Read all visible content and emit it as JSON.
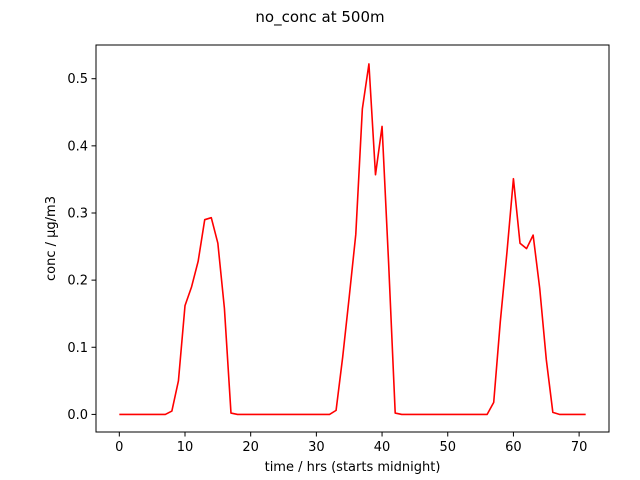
{
  "chart_data": {
    "type": "line",
    "title": "no_conc at 500m",
    "xlabel": "time / hrs (starts midnight)",
    "ylabel": "conc / µg/m3",
    "xlim": [
      -3.55,
      74.55
    ],
    "ylim": [
      -0.0262,
      0.5502
    ],
    "xticks": [
      0,
      10,
      20,
      30,
      40,
      50,
      60,
      70
    ],
    "yticks": [
      0.0,
      0.1,
      0.2,
      0.3,
      0.4,
      0.5
    ],
    "xtick_labels": [
      "0",
      "10",
      "20",
      "30",
      "40",
      "50",
      "60",
      "70"
    ],
    "ytick_labels": [
      "0.0",
      "0.1",
      "0.2",
      "0.3",
      "0.4",
      "0.5"
    ],
    "grid": false,
    "legend": "none",
    "series": [
      {
        "color": "#ff0000",
        "x": [
          0,
          1,
          2,
          3,
          4,
          5,
          6,
          7,
          8,
          9,
          10,
          11,
          12,
          13,
          14,
          15,
          16,
          17,
          18,
          19,
          20,
          21,
          22,
          23,
          24,
          25,
          26,
          27,
          28,
          29,
          30,
          31,
          32,
          33,
          34,
          35,
          36,
          37,
          38,
          39,
          40,
          41,
          42,
          43,
          44,
          45,
          46,
          47,
          48,
          49,
          50,
          51,
          52,
          53,
          54,
          55,
          56,
          57,
          58,
          59,
          60,
          61,
          62,
          63,
          64,
          65,
          66,
          67,
          68,
          69,
          70,
          71
        ],
        "y": [
          0,
          0,
          0,
          0,
          0,
          0,
          0,
          0,
          0.005,
          0.05,
          0.162,
          0.19,
          0.228,
          0.29,
          0.293,
          0.255,
          0.158,
          0.002,
          0,
          0,
          0,
          0,
          0,
          0,
          0,
          0,
          0,
          0,
          0,
          0,
          0,
          0,
          0,
          0.006,
          0.085,
          0.175,
          0.268,
          0.455,
          0.522,
          0.357,
          0.429,
          0.225,
          0.002,
          0,
          0,
          0,
          0,
          0,
          0,
          0,
          0,
          0,
          0,
          0,
          0,
          0,
          0,
          0.018,
          0.138,
          0.24,
          0.351,
          0.255,
          0.247,
          0.267,
          0.188,
          0.082,
          0.003,
          0,
          0,
          0,
          0,
          0
        ]
      }
    ]
  }
}
